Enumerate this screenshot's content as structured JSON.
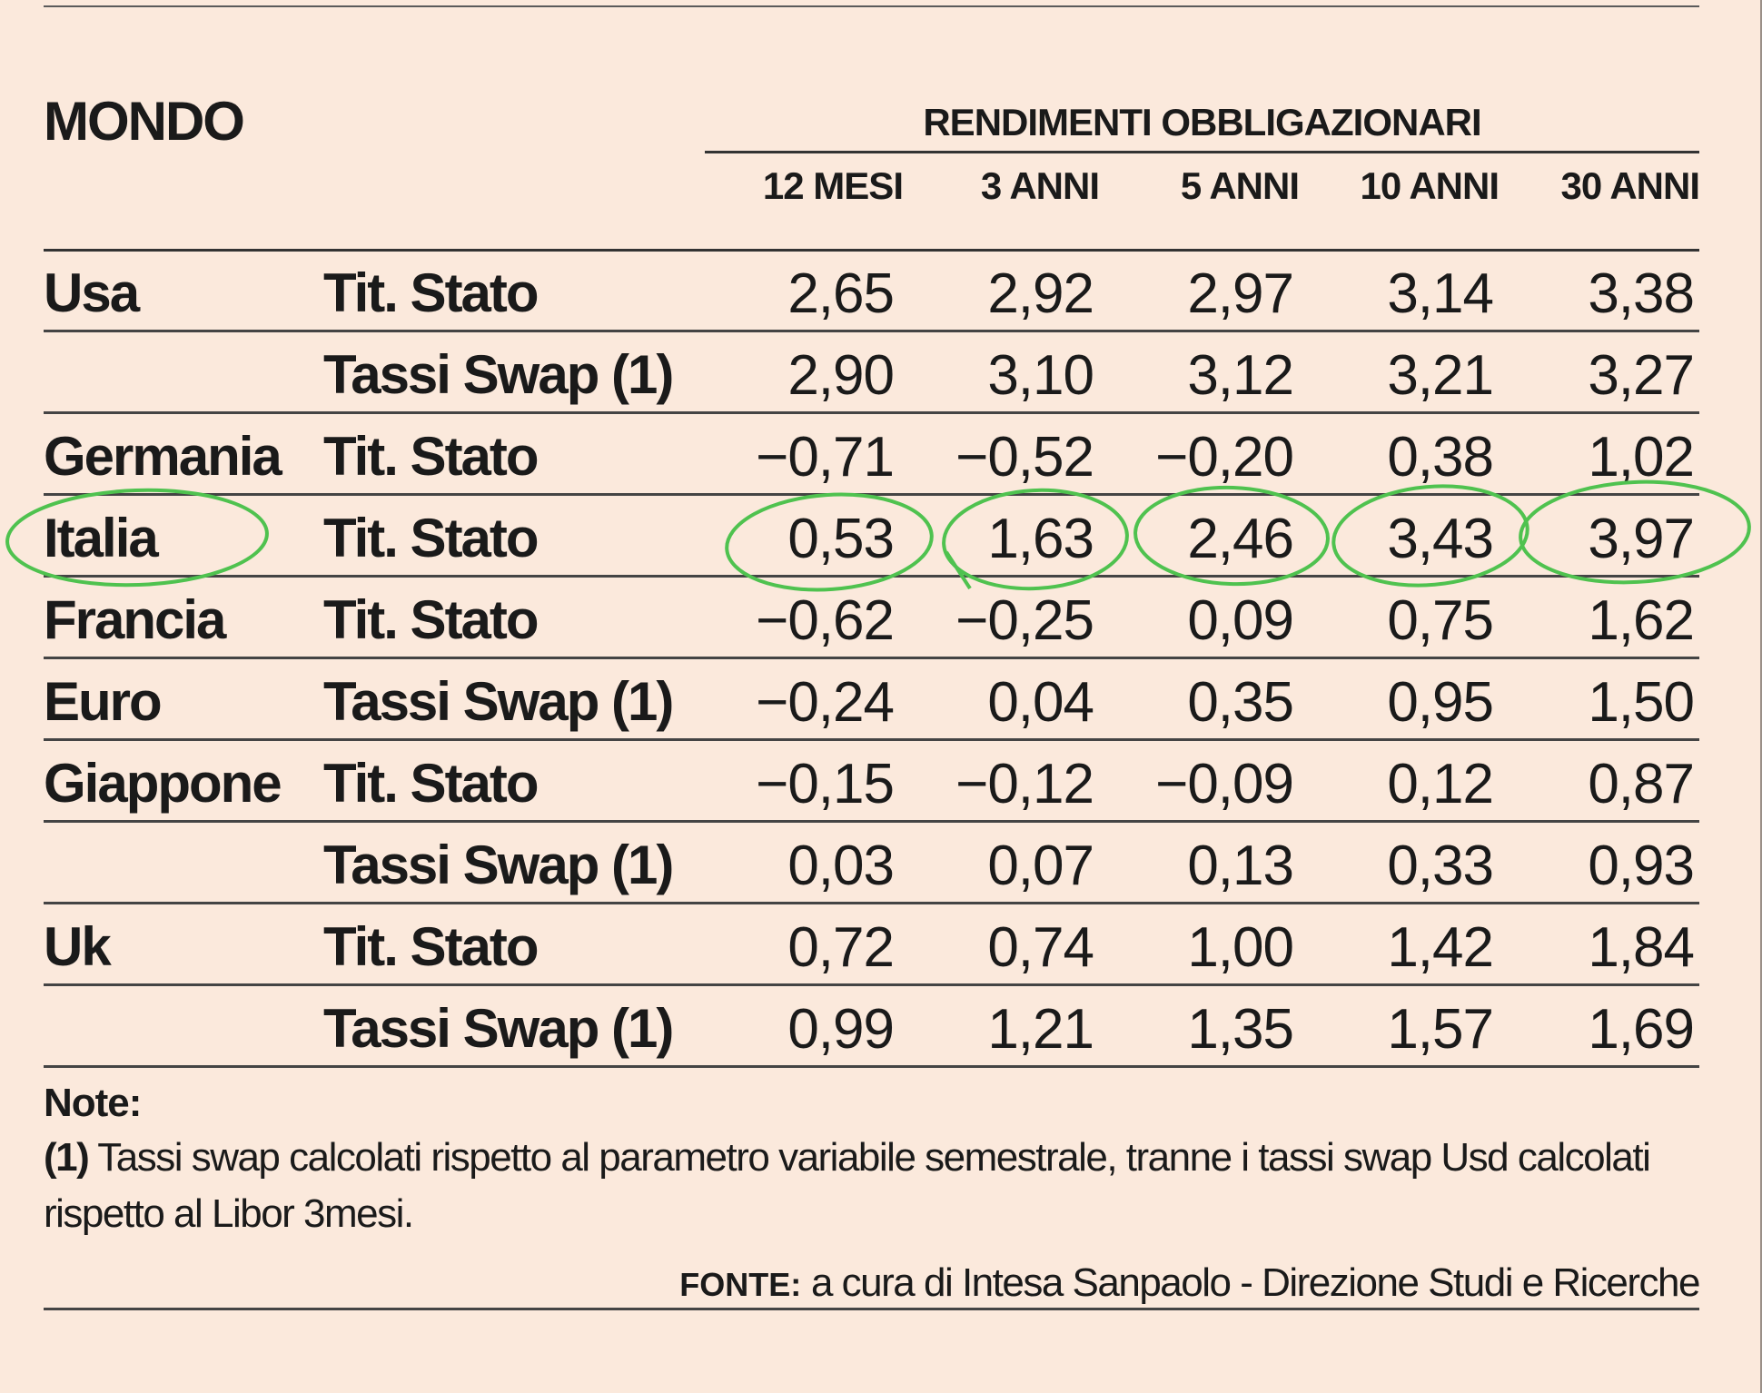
{
  "table": {
    "section_title": "MONDO",
    "group_header": "RENDIMENTI OBBLIGAZIONARI",
    "columns": [
      "12 MESI",
      "3 ANNI",
      "5 ANNI",
      "10 ANNI",
      "30 ANNI"
    ],
    "rows": [
      {
        "country": "Usa",
        "kind": "Tit. Stato",
        "values": [
          "2,65",
          "2,92",
          "2,97",
          "3,14",
          "3,38"
        ]
      },
      {
        "country": "",
        "kind": "Tassi Swap (1)",
        "values": [
          "2,90",
          "3,10",
          "3,12",
          "3,21",
          "3,27"
        ]
      },
      {
        "country": "Germania",
        "kind": "Tit. Stato",
        "values": [
          "−0,71",
          "−0,52",
          "−0,20",
          "0,38",
          "1,02"
        ]
      },
      {
        "country": "Italia",
        "kind": "Tit. Stato",
        "values": [
          "0,53",
          "1,63",
          "2,46",
          "3,43",
          "3,97"
        ]
      },
      {
        "country": "Francia",
        "kind": "Tit. Stato",
        "values": [
          "−0,62",
          "−0,25",
          "0,09",
          "0,75",
          "1,62"
        ]
      },
      {
        "country": "Euro",
        "kind": "Tassi Swap (1)",
        "values": [
          "−0,24",
          "0,04",
          "0,35",
          "0,95",
          "1,50"
        ]
      },
      {
        "country": "Giappone",
        "kind": "Tit. Stato",
        "values": [
          "−0,15",
          "−0,12",
          "−0,09",
          "0,12",
          "0,87"
        ]
      },
      {
        "country": "",
        "kind": "Tassi Swap (1)",
        "values": [
          "0,03",
          "0,07",
          "0,13",
          "0,33",
          "0,93"
        ]
      },
      {
        "country": "Uk",
        "kind": "Tit. Stato",
        "values": [
          "0,72",
          "0,74",
          "1,00",
          "1,42",
          "1,84"
        ]
      },
      {
        "country": "",
        "kind": "Tassi Swap (1)",
        "values": [
          "0,99",
          "1,21",
          "1,35",
          "1,57",
          "1,69"
        ]
      }
    ]
  },
  "notes": {
    "title": "Note:",
    "marker": "(1)",
    "text": "Tassi swap calcolati rispetto al parametro variabile semestrale, tranne i tassi swap Usd calcolati rispetto al Libor 3mesi."
  },
  "source": {
    "label": "FONTE:",
    "text": "a cura di Intesa Sanpaolo - Direzione Studi e Ricerche"
  },
  "annotation": {
    "color": "#4fc24f",
    "highlighted_row": "Italia"
  }
}
